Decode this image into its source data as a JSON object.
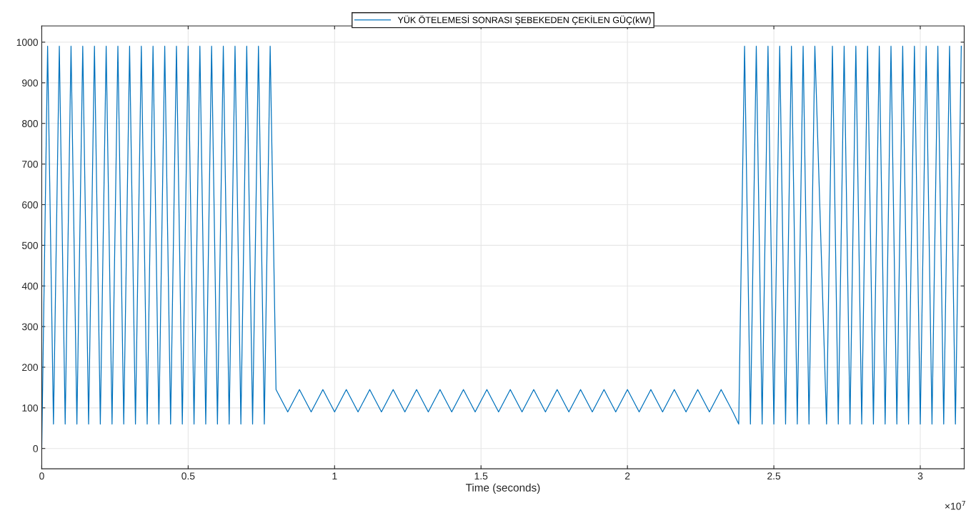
{
  "chart_data": {
    "type": "line",
    "xlabel": "Time (seconds)",
    "x": [
      0,
      0.02,
      0.04,
      0.06,
      0.08,
      0.1,
      0.12,
      0.14,
      0.16,
      0.18,
      0.2,
      0.22,
      0.24,
      0.26,
      0.28,
      0.3,
      0.32,
      0.34,
      0.36,
      0.38,
      0.4,
      0.42,
      0.44,
      0.46,
      0.48,
      0.5,
      0.52,
      0.54,
      0.56,
      0.58,
      0.6,
      0.62,
      0.64,
      0.66,
      0.68,
      0.7,
      0.72,
      0.74,
      0.76,
      0.78,
      0.8,
      0.84,
      0.88,
      0.92,
      0.96,
      1.0,
      1.04,
      1.08,
      1.12,
      1.16,
      1.2,
      1.24,
      1.28,
      1.32,
      1.36,
      1.4,
      1.44,
      1.48,
      1.52,
      1.56,
      1.6,
      1.64,
      1.68,
      1.72,
      1.76,
      1.8,
      1.84,
      1.88,
      1.92,
      1.96,
      2.0,
      2.04,
      2.08,
      2.12,
      2.16,
      2.2,
      2.24,
      2.28,
      2.32,
      2.36,
      2.38,
      2.4,
      2.42,
      2.44,
      2.46,
      2.48,
      2.5,
      2.52,
      2.54,
      2.56,
      2.58,
      2.6,
      2.62,
      2.64,
      2.68,
      2.7,
      2.72,
      2.74,
      2.76,
      2.78,
      2.8,
      2.82,
      2.84,
      2.86,
      2.88,
      2.9,
      2.92,
      2.94,
      2.96,
      2.98,
      3.0,
      3.02,
      3.04,
      3.06,
      3.08,
      3.1,
      3.12,
      3.14
    ],
    "series": [
      {
        "name": "YÜK ÖTELEMESİ SONRASI ŞEBEKEDEN ÇEKİLEN GÜÇ(kW)",
        "color": "#0072bd",
        "values": [
          0,
          990,
          60,
          990,
          60,
          990,
          60,
          990,
          60,
          990,
          60,
          990,
          60,
          990,
          60,
          990,
          60,
          990,
          60,
          990,
          60,
          990,
          60,
          990,
          60,
          990,
          60,
          990,
          60,
          990,
          60,
          990,
          60,
          990,
          60,
          990,
          60,
          990,
          60,
          990,
          145,
          90,
          145,
          90,
          145,
          90,
          145,
          90,
          145,
          90,
          145,
          90,
          145,
          90,
          145,
          90,
          145,
          90,
          145,
          90,
          145,
          90,
          145,
          90,
          145,
          90,
          145,
          90,
          145,
          90,
          145,
          90,
          145,
          90,
          145,
          90,
          145,
          90,
          145,
          90,
          60,
          990,
          60,
          990,
          60,
          990,
          60,
          990,
          60,
          990,
          60,
          990,
          60,
          990,
          60,
          990,
          60,
          990,
          60,
          990,
          60,
          990,
          60,
          990,
          60,
          990,
          60,
          990,
          60,
          990,
          60,
          990,
          60,
          990,
          60,
          990,
          60,
          990
        ]
      }
    ],
    "xlim": [
      0,
      3.15
    ],
    "xticks": [
      0,
      0.5,
      1,
      1.5,
      2,
      2.5,
      3
    ],
    "ylim": [
      -50,
      1040
    ],
    "yticks": [
      0,
      100,
      200,
      300,
      400,
      500,
      600,
      700,
      800,
      900,
      1000
    ],
    "annotations": [
      "×10$^{7}$"
    ],
    "grid": true,
    "legend": "top",
    "marker": "none",
    "line_style": "solid"
  }
}
